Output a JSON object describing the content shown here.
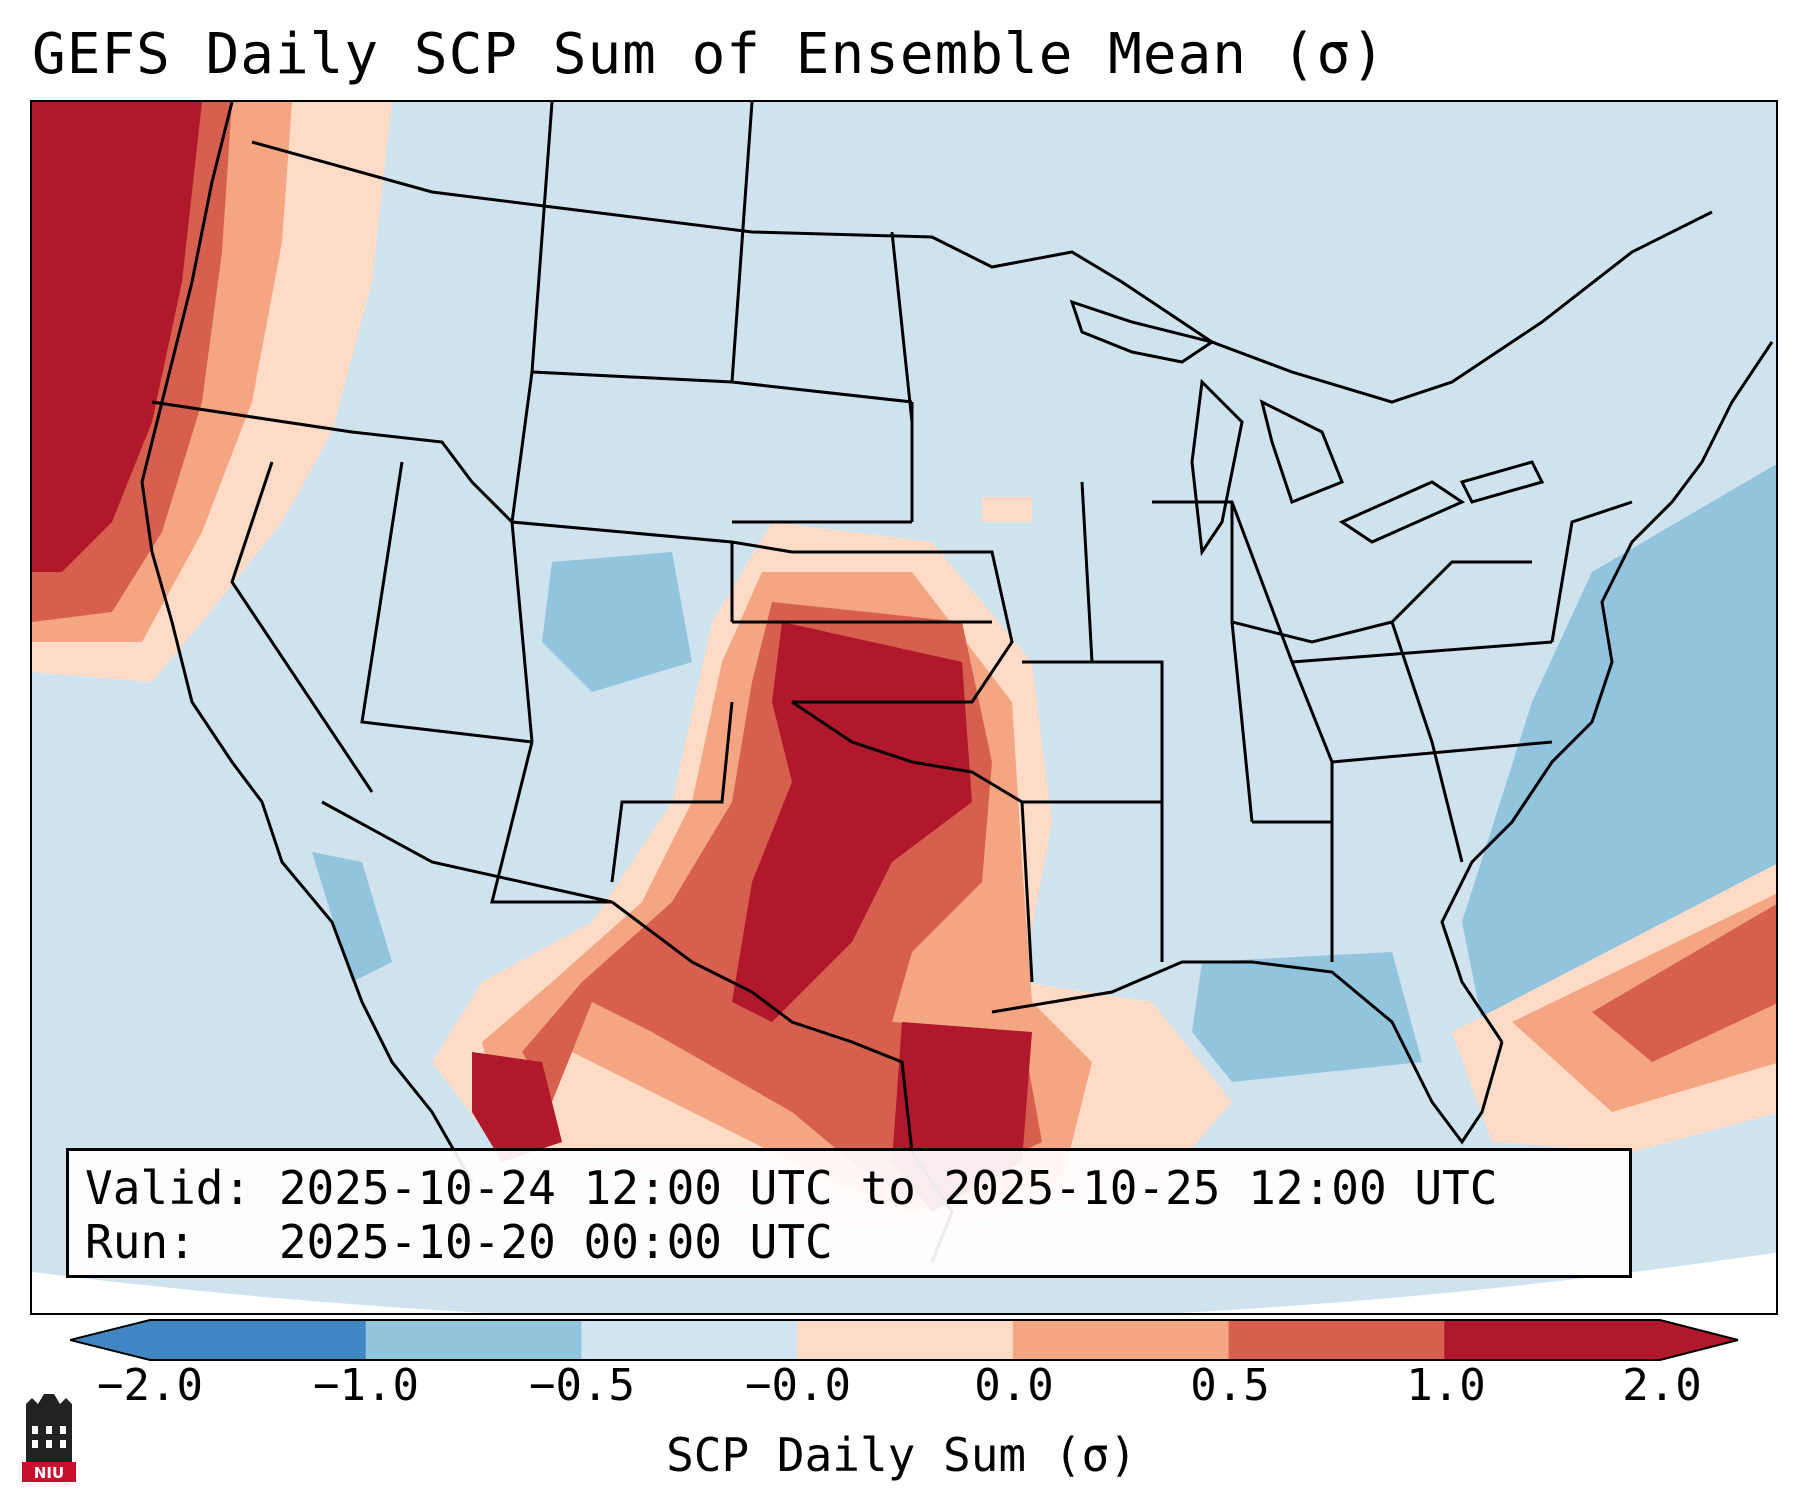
{
  "title": "GEFS Daily SCP Sum of Ensemble Mean (σ)",
  "info": {
    "valid_line": "Valid: 2025-10-24 12:00 UTC to 2025-10-25 12:00 UTC",
    "run_line": "Run:   2025-10-20 00:00 UTC"
  },
  "colorbar": {
    "label": "SCP Daily Sum (σ)",
    "ticks": [
      "−2.0",
      "−1.0",
      "−0.5",
      "−0.0",
      "0.0",
      "0.5",
      "1.0",
      "2.0"
    ],
    "colors": [
      "#3f86c2",
      "#92c4de",
      "#d1e5f0",
      "#fddbc7",
      "#f4a582",
      "#d6604d",
      "#b2182b"
    ]
  },
  "logo": {
    "text": "NIU"
  },
  "colors": {
    "neutral": "#cfe3ef",
    "light_blue": "#92c4de",
    "peach": "#fddbc7",
    "salmon": "#f4a582",
    "red": "#d6604d",
    "dark_red": "#b2182b",
    "border": "#000000"
  }
}
